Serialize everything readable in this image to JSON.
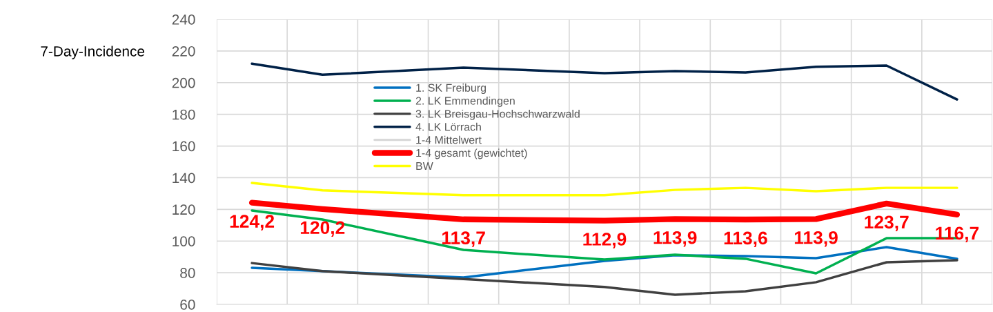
{
  "chart_data": {
    "type": "line",
    "ylabel": "7-Day-Incidence",
    "categories": [
      null,
      null,
      null,
      null,
      null,
      null,
      null,
      null,
      null,
      null,
      null
    ],
    "ylim": [
      60,
      240
    ],
    "yticks": [
      60,
      80,
      100,
      120,
      140,
      160,
      180,
      200,
      220,
      240
    ],
    "grid": true,
    "legend": "top left",
    "marker": "none",
    "line_style": "solid",
    "series": [
      {
        "name": "1. SK Freiburg",
        "color": "#0070c0",
        "values": [
          83.1,
          81,
          null,
          77,
          null,
          87.5,
          91,
          90.5,
          89.2,
          96.2,
          88.8
        ]
      },
      {
        "name": "2. LK Emmendingen",
        "color": "#00b050",
        "values": [
          119.3,
          113.6,
          null,
          94.4,
          null,
          88.3,
          91.4,
          88.8,
          79.6,
          101.8,
          101.8
        ]
      },
      {
        "name": "3. LK Breisgau-Hochschwarzwald",
        "color": "#404040",
        "values": [
          86.1,
          81,
          null,
          76,
          null,
          71,
          66.1,
          68.3,
          74,
          86.6,
          87.9
        ]
      },
      {
        "name": "4. LK Lörrach",
        "color": "#002147",
        "values": [
          212,
          205,
          null,
          209.5,
          null,
          206,
          207.3,
          206.4,
          210,
          210.8,
          189.4
        ]
      },
      {
        "name": "1-4 Mittelwert",
        "color": "#d9d9d9",
        "values": [
          null,
          null,
          null,
          null,
          null,
          null,
          null,
          null,
          null,
          null,
          null
        ]
      },
      {
        "name": "1-4 gesamt (gewichtet)",
        "color": "#ff0000",
        "values": [
          124.2,
          120.2,
          null,
          113.7,
          null,
          112.9,
          113.9,
          113.6,
          113.9,
          123.7,
          116.7
        ],
        "value_labels": [
          "124,2",
          "120,2",
          null,
          "113,7",
          null,
          "112,9",
          "113,9",
          "113,6",
          "113,9",
          "123,7",
          "116,7"
        ]
      },
      {
        "name": "BW",
        "color": "#ffff00",
        "values": [
          136.7,
          132,
          null,
          129,
          null,
          129,
          132.3,
          133.6,
          131.5,
          133.6,
          133.6
        ]
      }
    ]
  }
}
